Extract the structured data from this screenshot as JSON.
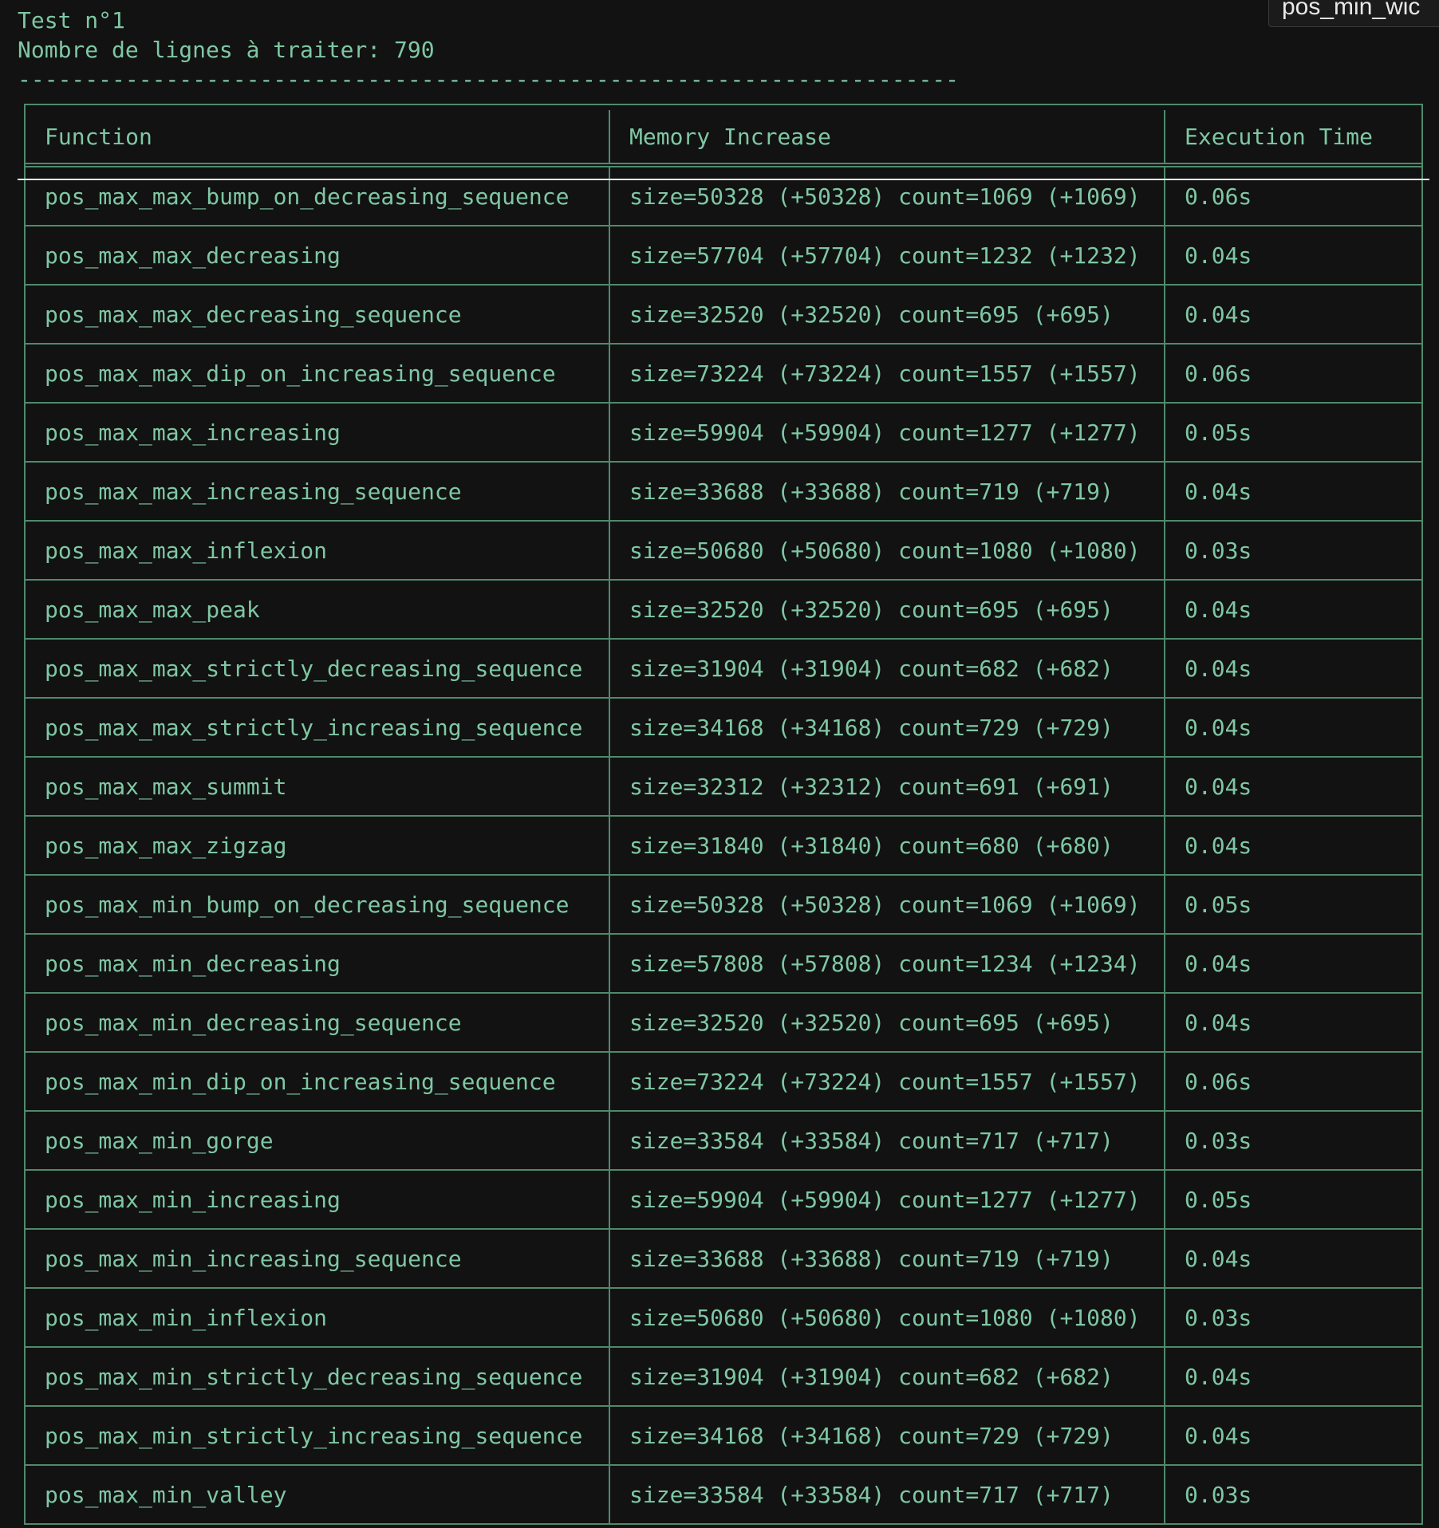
{
  "header": {
    "test_title": "Test n°1",
    "line_count": "Nombre de lignes à traiter: 790",
    "separator": "----------------------------------------------------------------------"
  },
  "tooltip": {
    "text": "pos_min_wic"
  },
  "table": {
    "columns": [
      "Function",
      "Memory Increase",
      "Execution Time"
    ],
    "rows": [
      [
        "pos_max_max_bump_on_decreasing_sequence",
        "size=50328 (+50328) count=1069 (+1069)",
        "0.06s"
      ],
      [
        "pos_max_max_decreasing",
        "size=57704 (+57704) count=1232 (+1232)",
        "0.04s"
      ],
      [
        "pos_max_max_decreasing_sequence",
        "size=32520 (+32520) count=695 (+695)",
        "0.04s"
      ],
      [
        "pos_max_max_dip_on_increasing_sequence",
        "size=73224 (+73224) count=1557 (+1557)",
        "0.06s"
      ],
      [
        "pos_max_max_increasing",
        "size=59904 (+59904) count=1277 (+1277)",
        "0.05s"
      ],
      [
        "pos_max_max_increasing_sequence",
        "size=33688 (+33688) count=719 (+719)",
        "0.04s"
      ],
      [
        "pos_max_max_inflexion",
        "size=50680 (+50680) count=1080 (+1080)",
        "0.03s"
      ],
      [
        "pos_max_max_peak",
        "size=32520 (+32520) count=695 (+695)",
        "0.04s"
      ],
      [
        "pos_max_max_strictly_decreasing_sequence",
        "size=31904 (+31904) count=682 (+682)",
        "0.04s"
      ],
      [
        "pos_max_max_strictly_increasing_sequence",
        "size=34168 (+34168) count=729 (+729)",
        "0.04s"
      ],
      [
        "pos_max_max_summit",
        "size=32312 (+32312) count=691 (+691)",
        "0.04s"
      ],
      [
        "pos_max_max_zigzag",
        "size=31840 (+31840) count=680 (+680)",
        "0.04s"
      ],
      [
        "pos_max_min_bump_on_decreasing_sequence",
        "size=50328 (+50328) count=1069 (+1069)",
        "0.05s"
      ],
      [
        "pos_max_min_decreasing",
        "size=57808 (+57808) count=1234 (+1234)",
        "0.04s"
      ],
      [
        "pos_max_min_decreasing_sequence",
        "size=32520 (+32520) count=695 (+695)",
        "0.04s"
      ],
      [
        "pos_max_min_dip_on_increasing_sequence",
        "size=73224 (+73224) count=1557 (+1557)",
        "0.06s"
      ],
      [
        "pos_max_min_gorge",
        "size=33584 (+33584) count=717 (+717)",
        "0.03s"
      ],
      [
        "pos_max_min_increasing",
        "size=59904 (+59904) count=1277 (+1277)",
        "0.05s"
      ],
      [
        "pos_max_min_increasing_sequence",
        "size=33688 (+33688) count=719 (+719)",
        "0.04s"
      ],
      [
        "pos_max_min_inflexion",
        "size=50680 (+50680) count=1080 (+1080)",
        "0.03s"
      ],
      [
        "pos_max_min_strictly_decreasing_sequence",
        "size=31904 (+31904) count=682 (+682)",
        "0.04s"
      ],
      [
        "pos_max_min_strictly_increasing_sequence",
        "size=34168 (+34168) count=729 (+729)",
        "0.04s"
      ],
      [
        "pos_max_min_valley",
        "size=33584 (+33584) count=717 (+717)",
        "0.03s"
      ]
    ]
  }
}
